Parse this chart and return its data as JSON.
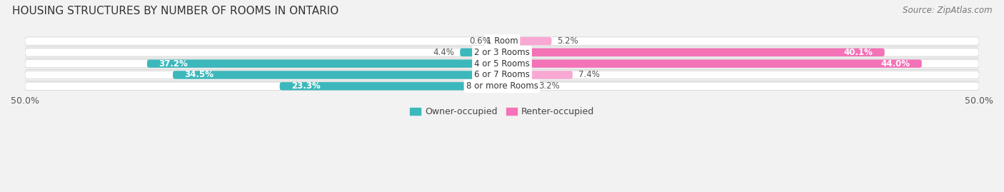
{
  "title": "HOUSING STRUCTURES BY NUMBER OF ROOMS IN ONTARIO",
  "source": "Source: ZipAtlas.com",
  "categories": [
    "1 Room",
    "2 or 3 Rooms",
    "4 or 5 Rooms",
    "6 or 7 Rooms",
    "8 or more Rooms"
  ],
  "owner_values": [
    0.6,
    4.4,
    37.2,
    34.5,
    23.3
  ],
  "renter_values": [
    5.2,
    40.1,
    44.0,
    7.4,
    3.2
  ],
  "owner_color": "#3cb8bc",
  "renter_color": "#f472b6",
  "renter_color_light": "#f9a8d4",
  "owner_label": "Owner-occupied",
  "renter_label": "Renter-occupied",
  "xlim": [
    -50,
    50
  ],
  "background_color": "#f2f2f2",
  "bar_bg_color": "#e8e8e8",
  "title_fontsize": 11,
  "source_fontsize": 8.5,
  "label_fontsize": 8.5
}
